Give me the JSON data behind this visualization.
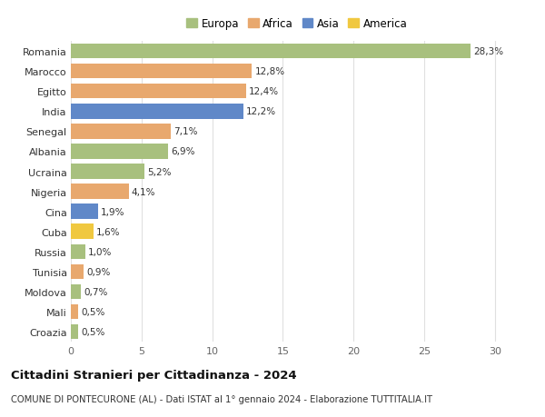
{
  "countries": [
    "Romania",
    "Marocco",
    "Egitto",
    "India",
    "Senegal",
    "Albania",
    "Ucraina",
    "Nigeria",
    "Cina",
    "Cuba",
    "Russia",
    "Tunisia",
    "Moldova",
    "Mali",
    "Croazia"
  ],
  "values": [
    28.3,
    12.8,
    12.4,
    12.2,
    7.1,
    6.9,
    5.2,
    4.1,
    1.9,
    1.6,
    1.0,
    0.9,
    0.7,
    0.5,
    0.5
  ],
  "labels": [
    "28,3%",
    "12,8%",
    "12,4%",
    "12,2%",
    "7,1%",
    "6,9%",
    "5,2%",
    "4,1%",
    "1,9%",
    "1,6%",
    "1,0%",
    "0,9%",
    "0,7%",
    "0,5%",
    "0,5%"
  ],
  "continent": [
    "Europa",
    "Africa",
    "Africa",
    "Asia",
    "Africa",
    "Europa",
    "Europa",
    "Africa",
    "Asia",
    "America",
    "Europa",
    "Africa",
    "Europa",
    "Africa",
    "Europa"
  ],
  "colors": {
    "Europa": "#a8c07e",
    "Africa": "#e8a86e",
    "Asia": "#6088c8",
    "America": "#f0c840"
  },
  "legend_order": [
    "Europa",
    "Africa",
    "Asia",
    "America"
  ],
  "title": "Cittadini Stranieri per Cittadinanza - 2024",
  "subtitle": "COMUNE DI PONTECURONE (AL) - Dati ISTAT al 1° gennaio 2024 - Elaborazione TUTTITALIA.IT",
  "xlim": [
    0,
    32
  ],
  "xticks": [
    0,
    5,
    10,
    15,
    20,
    25,
    30
  ],
  "background_color": "#ffffff",
  "grid_color": "#e0e0e0"
}
